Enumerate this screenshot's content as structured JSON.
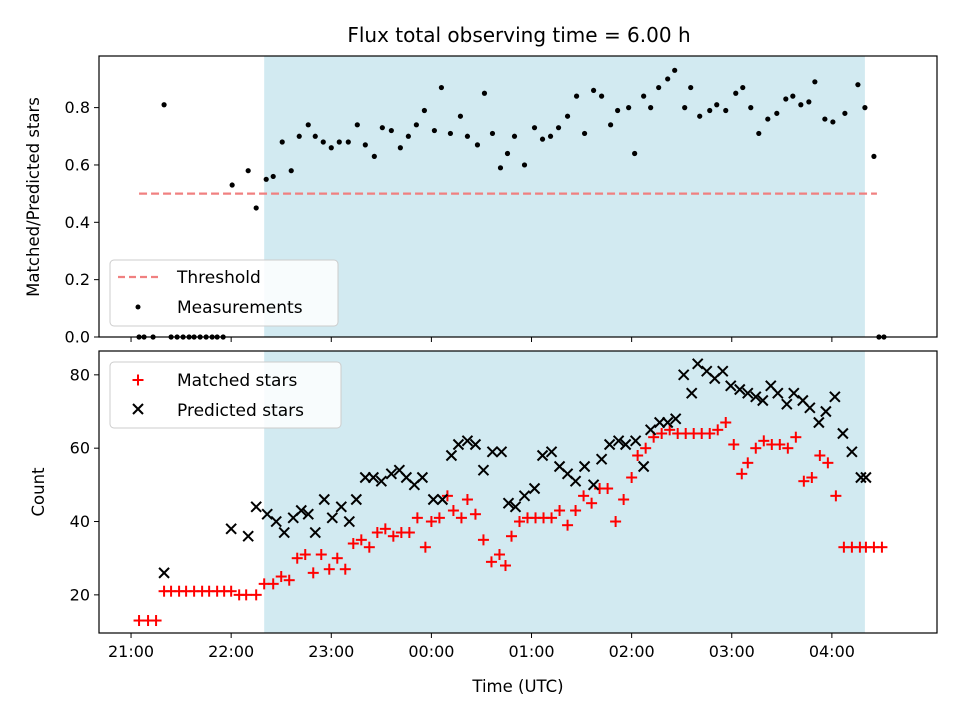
{
  "chart_data": {
    "title": "Flux total observing time = 6.00 h",
    "xlabel": "Time (UTC)",
    "x_tick_labels": [
      "21:00",
      "22:00",
      "23:00",
      "00:00",
      "01:00",
      "02:00",
      "03:00",
      "04:00"
    ],
    "x_units": "hours since 21:00 UTC",
    "observing_window": {
      "start": 1.33,
      "end": 7.33,
      "color": "#add8e6"
    },
    "panels": [
      {
        "type": "scatter",
        "ylabel": "Matched/Predicted stars",
        "xlim": [
          -0.32,
          8.05
        ],
        "ylim": [
          0,
          0.98
        ],
        "yticks": [
          0.0,
          0.2,
          0.4,
          0.6,
          0.8
        ],
        "y_tick_labels": [
          "0.0",
          "0.2",
          "0.4",
          "0.6",
          "0.8"
        ],
        "legend_position": "lower-left",
        "threshold": {
          "name": "Threshold",
          "y": 0.5,
          "x_start": 0.08,
          "x_end": 7.45,
          "color": "#f08080",
          "style": "dashed"
        },
        "series": [
          {
            "name": "Measurements",
            "color": "#000000",
            "marker": "dot",
            "x": [
              0.08,
              0.13,
              0.22,
              0.33,
              0.4,
              0.46,
              0.52,
              0.58,
              0.63,
              0.69,
              0.75,
              0.81,
              0.86,
              0.92,
              1.01,
              1.17,
              1.25,
              1.35,
              1.42,
              1.51,
              1.6,
              1.68,
              1.77,
              1.84,
              1.92,
              2.0,
              2.08,
              2.17,
              2.26,
              2.34,
              2.43,
              2.51,
              2.6,
              2.69,
              2.77,
              2.85,
              2.93,
              3.03,
              3.1,
              3.19,
              3.29,
              3.36,
              3.46,
              3.53,
              3.61,
              3.69,
              3.76,
              3.83,
              3.93,
              4.03,
              4.11,
              4.19,
              4.27,
              4.36,
              4.45,
              4.53,
              4.62,
              4.7,
              4.79,
              4.86,
              4.97,
              5.03,
              5.12,
              5.19,
              5.27,
              5.36,
              5.43,
              5.53,
              5.59,
              5.68,
              5.78,
              5.85,
              5.94,
              6.04,
              6.11,
              6.19,
              6.27,
              6.36,
              6.45,
              6.54,
              6.61,
              6.69,
              6.77,
              6.83,
              6.93,
              7.01,
              7.13,
              7.26,
              7.33,
              7.42,
              7.47,
              7.52
            ],
            "y": [
              0.0,
              0.0,
              0.0,
              0.81,
              0.0,
              0.0,
              0.0,
              0.0,
              0.0,
              0.0,
              0.0,
              0.0,
              0.0,
              0.0,
              0.53,
              0.58,
              0.45,
              0.55,
              0.56,
              0.68,
              0.58,
              0.7,
              0.74,
              0.7,
              0.68,
              0.66,
              0.68,
              0.68,
              0.74,
              0.67,
              0.63,
              0.73,
              0.72,
              0.66,
              0.7,
              0.74,
              0.79,
              0.72,
              0.87,
              0.71,
              0.77,
              0.7,
              0.67,
              0.85,
              0.71,
              0.59,
              0.64,
              0.7,
              0.6,
              0.73,
              0.69,
              0.7,
              0.73,
              0.77,
              0.84,
              0.71,
              0.86,
              0.84,
              0.74,
              0.79,
              0.8,
              0.64,
              0.84,
              0.8,
              0.87,
              0.9,
              0.93,
              0.8,
              0.87,
              0.77,
              0.79,
              0.81,
              0.79,
              0.85,
              0.87,
              0.8,
              0.71,
              0.76,
              0.78,
              0.83,
              0.84,
              0.81,
              0.82,
              0.89,
              0.76,
              0.75,
              0.78,
              0.88,
              0.8,
              0.63,
              0.0,
              0.0
            ]
          }
        ]
      },
      {
        "type": "scatter",
        "ylabel": "Count",
        "xlim": [
          -0.32,
          8.05
        ],
        "ylim": [
          9.6,
          86.5
        ],
        "yticks": [
          20,
          40,
          60,
          80
        ],
        "y_tick_labels": [
          "20",
          "40",
          "60",
          "80"
        ],
        "legend_position": "upper-left",
        "series": [
          {
            "name": "Matched stars",
            "color": "#ff0000",
            "marker": "plus",
            "x": [
              0.08,
              0.17,
              0.25,
              0.33,
              0.4,
              0.48,
              0.55,
              0.63,
              0.71,
              0.78,
              0.86,
              0.93,
              1.0,
              1.08,
              1.15,
              1.25,
              1.33,
              1.42,
              1.5,
              1.58,
              1.66,
              1.74,
              1.82,
              1.9,
              1.98,
              2.06,
              2.14,
              2.22,
              2.3,
              2.38,
              2.46,
              2.54,
              2.62,
              2.7,
              2.78,
              2.86,
              2.94,
              3.0,
              3.08,
              3.16,
              3.22,
              3.3,
              3.36,
              3.44,
              3.52,
              3.6,
              3.68,
              3.74,
              3.8,
              3.88,
              3.96,
              4.04,
              4.12,
              4.2,
              4.28,
              4.36,
              4.44,
              4.52,
              4.6,
              4.68,
              4.76,
              4.84,
              4.92,
              5.0,
              5.06,
              5.14,
              5.22,
              5.3,
              5.38,
              5.46,
              5.54,
              5.62,
              5.7,
              5.78,
              5.86,
              5.94,
              6.02,
              6.1,
              6.16,
              6.24,
              6.32,
              6.4,
              6.48,
              6.56,
              6.64,
              6.72,
              6.8,
              6.88,
              6.96,
              7.04,
              7.12,
              7.2,
              7.28,
              7.34,
              7.42,
              7.5
            ],
            "y": [
              13,
              13,
              13,
              21,
              21,
              21,
              21,
              21,
              21,
              21,
              21,
              21,
              21,
              20,
              20,
              20,
              23,
              23,
              25,
              24,
              30,
              31,
              26,
              31,
              27,
              30,
              27,
              34,
              35,
              33,
              37,
              38,
              36,
              37,
              37,
              41,
              33,
              40,
              41,
              47,
              43,
              41,
              46,
              42,
              35,
              29,
              31,
              28,
              36,
              40,
              41,
              41,
              41,
              41,
              43,
              39,
              43,
              47,
              45,
              49,
              49,
              40,
              46,
              52,
              58,
              60,
              63,
              64,
              65,
              64,
              64,
              64,
              64,
              64,
              65,
              67,
              61,
              53,
              56,
              60,
              62,
              61,
              61,
              60,
              63,
              51,
              52,
              58,
              56,
              47,
              33,
              33,
              33,
              33,
              33,
              33
            ],
            "note_plot_only_first_series_points": true
          },
          {
            "name": "Predicted stars",
            "color": "#000000",
            "marker": "x",
            "x": [
              0.33,
              1.0,
              1.17,
              1.25,
              1.36,
              1.45,
              1.53,
              1.62,
              1.7,
              1.77,
              1.84,
              1.93,
              2.01,
              2.1,
              2.18,
              2.25,
              2.34,
              2.42,
              2.5,
              2.6,
              2.68,
              2.75,
              2.83,
              2.91,
              3.02,
              3.11,
              3.2,
              3.27,
              3.36,
              3.44,
              3.52,
              3.61,
              3.7,
              3.77,
              3.84,
              3.93,
              4.03,
              4.11,
              4.2,
              4.28,
              4.36,
              4.44,
              4.53,
              4.62,
              4.7,
              4.78,
              4.87,
              4.94,
              5.04,
              5.12,
              5.19,
              5.28,
              5.36,
              5.44,
              5.52,
              5.6,
              5.66,
              5.75,
              5.83,
              5.91,
              5.99,
              6.08,
              6.16,
              6.24,
              6.31,
              6.39,
              6.46,
              6.55,
              6.62,
              6.71,
              6.78,
              6.87,
              6.94,
              7.03,
              7.11,
              7.2,
              7.29,
              7.34
            ],
            "y": [
              26,
              38,
              36,
              44,
              42,
              40,
              37,
              41,
              43,
              42,
              37,
              46,
              41,
              44,
              40,
              46,
              52,
              52,
              51,
              53,
              54,
              52,
              50,
              52,
              46,
              46,
              58,
              61,
              62,
              61,
              54,
              59,
              59,
              45,
              44,
              47,
              49,
              58,
              59,
              55,
              53,
              51,
              55,
              50,
              57,
              61,
              62,
              61,
              62,
              55,
              65,
              67,
              67,
              68,
              80,
              75,
              83,
              81,
              79,
              81,
              77,
              76,
              75,
              74,
              73,
              77,
              75,
              72,
              75,
              73,
              71,
              67,
              70,
              74,
              64,
              59,
              52,
              52
            ]
          }
        ]
      }
    ]
  }
}
